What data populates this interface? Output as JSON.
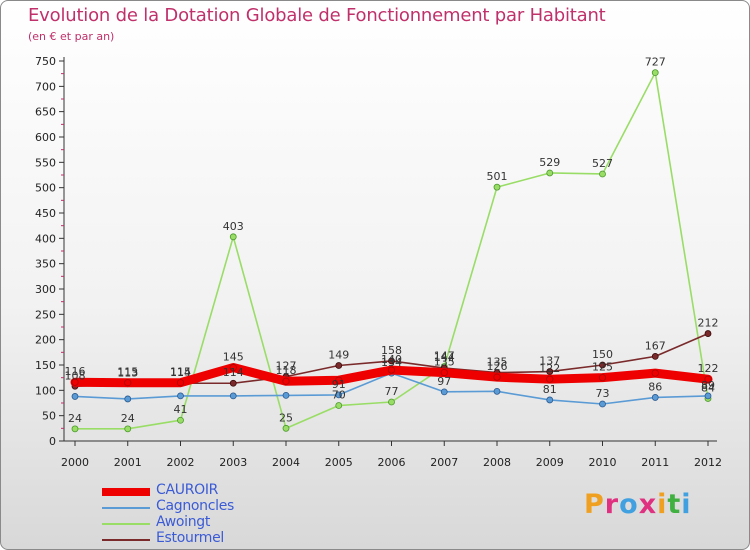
{
  "chart_data": {
    "type": "line",
    "title": "Evolution de la Dotation Globale de Fonctionnement par Habitant",
    "subtitle": "(en € et par an)",
    "xlabel": "",
    "ylabel": "",
    "ylim": [
      0,
      750
    ],
    "y_ticks": [
      "0",
      "50",
      "100",
      "150",
      "200",
      "250",
      "300",
      "350",
      "400",
      "450",
      "500",
      "550",
      "600",
      "650",
      "700",
      "750"
    ],
    "categories": [
      "2000",
      "2001",
      "2002",
      "2003",
      "2004",
      "2005",
      "2006",
      "2007",
      "2008",
      "2009",
      "2010",
      "2011",
      "2012"
    ],
    "grid": false,
    "legend_position": "bottom-left",
    "series": [
      {
        "name": "CAUROIR",
        "color": "#ee0000",
        "values": [
          116,
          115,
          115,
          145,
          118,
          120,
          140,
          135,
          126,
          122,
          125,
          134,
          122
        ],
        "labels": [
          "116",
          "115",
          "115",
          "145",
          "118",
          "",
          "140",
          "135",
          "126",
          "122",
          "125",
          "",
          "122"
        ]
      },
      {
        "name": "Cagnoncles",
        "color": "#5b9bd5",
        "values": [
          88,
          83,
          89,
          89,
          90,
          91,
          134,
          97,
          98,
          81,
          73,
          86,
          89
        ],
        "labels": [
          "",
          "",
          "",
          "",
          "",
          "91",
          "134",
          "97",
          "",
          "81",
          "73",
          "86",
          "89"
        ]
      },
      {
        "name": "Awoingt",
        "color": "#99dd66",
        "values": [
          24,
          24,
          41,
          403,
          25,
          70,
          77,
          147,
          501,
          529,
          527,
          727,
          84
        ],
        "labels": [
          "24",
          "24",
          "41",
          "403",
          "25",
          "70",
          "77",
          "147",
          "501",
          "529",
          "527",
          "727",
          "84"
        ]
      },
      {
        "name": "Estourmel",
        "color": "#7a2a2a",
        "values": [
          108,
          113,
          114,
          114,
          127,
          149,
          158,
          144,
          135,
          137,
          150,
          167,
          212
        ],
        "labels": [
          "108",
          "113",
          "114",
          "114",
          "127",
          "149",
          "158",
          "144",
          "135",
          "137",
          "150",
          "167",
          "212"
        ]
      }
    ]
  },
  "legend": {
    "items": [
      "CAUROIR",
      "Cagnoncles",
      "Awoingt",
      "Estourmel"
    ]
  },
  "logo": {
    "letters": [
      "P",
      "r",
      "o",
      "x",
      "i",
      "t",
      "i"
    ],
    "colors": [
      "#f0a020",
      "#e03080",
      "#40a0e0",
      "#e03080",
      "#f0a020",
      "#40b040",
      "#40a0e0"
    ]
  }
}
